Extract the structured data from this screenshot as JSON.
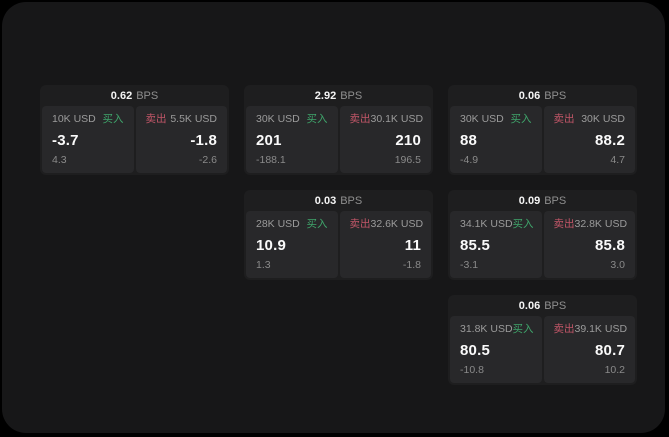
{
  "labels": {
    "bps_unit": "BPS",
    "buy": "买入",
    "sell": "卖出"
  },
  "colors": {
    "buy_green": "#3fa56b",
    "sell_red": "#c25668",
    "window_bg": "#171718",
    "card_bg": "#1e1e1f",
    "cell_bg": "#28282a"
  },
  "cards": [
    {
      "bps": "0.62",
      "buy": {
        "amount": "10K USD",
        "price": "-3.7",
        "sub": "4.3"
      },
      "sell": {
        "amount": "5.5K USD",
        "price": "-1.8",
        "sub": "-2.6"
      }
    },
    {
      "bps": "2.92",
      "buy": {
        "amount": "30K USD",
        "price": "201",
        "sub": "-188.1"
      },
      "sell": {
        "amount": "30.1K USD",
        "price": "210",
        "sub": "196.5"
      }
    },
    {
      "bps": "0.06",
      "buy": {
        "amount": "30K USD",
        "price": "88",
        "sub": "-4.9"
      },
      "sell": {
        "amount": "30K USD",
        "price": "88.2",
        "sub": "4.7"
      }
    },
    {
      "bps": "0.03",
      "buy": {
        "amount": "28K USD",
        "price": "10.9",
        "sub": "1.3"
      },
      "sell": {
        "amount": "32.6K USD",
        "price": "11",
        "sub": "-1.8"
      }
    },
    {
      "bps": "0.09",
      "buy": {
        "amount": "34.1K USD",
        "price": "85.5",
        "sub": "-3.1"
      },
      "sell": {
        "amount": "32.8K USD",
        "price": "85.8",
        "sub": "3.0"
      }
    },
    {
      "bps": "0.06",
      "buy": {
        "amount": "31.8K USD",
        "price": "80.5",
        "sub": "-10.8"
      },
      "sell": {
        "amount": "39.1K USD",
        "price": "80.7",
        "sub": "10.2"
      }
    }
  ]
}
